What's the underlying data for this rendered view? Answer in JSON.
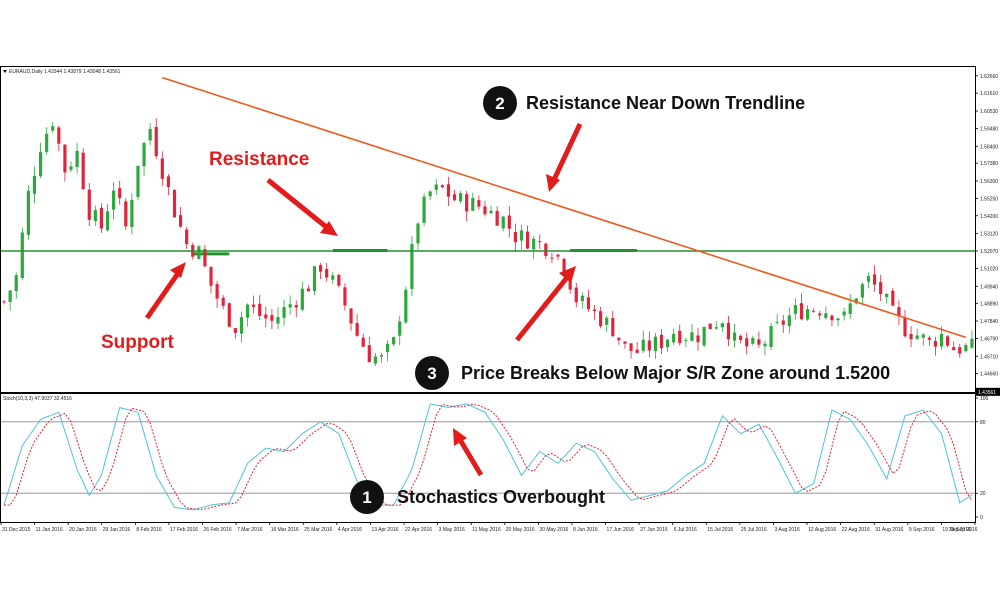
{
  "chart_data": {
    "type": "candlestick",
    "symbol_header": "EURAUD,Daily  1.43344 1.43879 1.43048 1.43561",
    "stoch_header": "Stoch(10,3,3) 47.9037 32.4516",
    "price_axis": {
      "ticks": [
        "1.62660",
        "1.61610",
        "1.60530",
        "1.59480",
        "1.58400",
        "1.57380",
        "1.56300",
        "1.55250",
        "1.54200",
        "1.53120",
        "1.52070",
        "1.51020",
        "1.49940",
        "1.48890",
        "1.47840",
        "1.46790",
        "1.45710",
        "1.44660"
      ],
      "last_price_label": "1.43561",
      "ylim": [
        1.4355,
        1.6319
      ]
    },
    "stoch_axis": {
      "ticks": [
        "100",
        "80",
        "20",
        "0"
      ],
      "ylim": [
        0,
        100
      ]
    },
    "x_axis_labels": [
      "31 Dec 2015",
      "11 Jan 2016",
      "20 Jan 2016",
      "29 Jan 2016",
      "8 Feb 2016",
      "17 Feb 2016",
      "26 Feb 2016",
      "7 Mar 2016",
      "16 Mar 2016",
      "25 Mar 2016",
      "4 Apr 2016",
      "13 Apr 2016",
      "22 Apr 2016",
      "3 May 2016",
      "11 May 2016",
      "20 May 2016",
      "30 May 2016",
      "8 Jun 2016",
      "17 Jun 2016",
      "27 Jun 2016",
      "6 Jul 2016",
      "15 Jul 2016",
      "25 Jul 2016",
      "3 Aug 2016",
      "12 Aug 2016",
      "22 Aug 2016",
      "31 Aug 2016",
      "9 Sep 2016",
      "19 Sep 2016",
      "28 Sep 2016"
    ],
    "close_path": [
      [
        0,
        1.49
      ],
      [
        2,
        1.505
      ],
      [
        4,
        1.555
      ],
      [
        6,
        1.585
      ],
      [
        8,
        1.6
      ],
      [
        10,
        1.57
      ],
      [
        12,
        1.58
      ],
      [
        14,
        1.545
      ],
      [
        16,
        1.535
      ],
      [
        18,
        1.56
      ],
      [
        20,
        1.535
      ],
      [
        22,
        1.575
      ],
      [
        24,
        1.595
      ],
      [
        26,
        1.57
      ],
      [
        28,
        1.545
      ],
      [
        30,
        1.525
      ],
      [
        32,
        1.52
      ],
      [
        34,
        1.5
      ],
      [
        36,
        1.485
      ],
      [
        38,
        1.475
      ],
      [
        40,
        1.488
      ],
      [
        42,
        1.482
      ],
      [
        44,
        1.478
      ],
      [
        46,
        1.485
      ],
      [
        48,
        1.492
      ],
      [
        50,
        1.5
      ],
      [
        52,
        1.512
      ],
      [
        54,
        1.502
      ],
      [
        56,
        1.488
      ],
      [
        58,
        1.47
      ],
      [
        60,
        1.458
      ],
      [
        62,
        1.455
      ],
      [
        64,
        1.465
      ],
      [
        66,
        1.5
      ],
      [
        68,
        1.54
      ],
      [
        70,
        1.556
      ],
      [
        72,
        1.558
      ],
      [
        74,
        1.552
      ],
      [
        76,
        1.55
      ],
      [
        78,
        1.548
      ],
      [
        80,
        1.544
      ],
      [
        82,
        1.54
      ],
      [
        84,
        1.53
      ],
      [
        86,
        1.528
      ],
      [
        88,
        1.525
      ],
      [
        90,
        1.522
      ],
      [
        92,
        1.512
      ],
      [
        94,
        1.492
      ],
      [
        96,
        1.486
      ],
      [
        98,
        1.48
      ],
      [
        100,
        1.474
      ],
      [
        102,
        1.462
      ],
      [
        104,
        1.46
      ],
      [
        106,
        1.463
      ],
      [
        108,
        1.466
      ],
      [
        110,
        1.472
      ],
      [
        112,
        1.47
      ],
      [
        114,
        1.47
      ],
      [
        116,
        1.476
      ],
      [
        118,
        1.48
      ],
      [
        120,
        1.466
      ],
      [
        122,
        1.463
      ],
      [
        124,
        1.462
      ],
      [
        126,
        1.47
      ],
      [
        128,
        1.478
      ],
      [
        130,
        1.484
      ],
      [
        132,
        1.486
      ],
      [
        134,
        1.486
      ],
      [
        136,
        1.484
      ],
      [
        138,
        1.48
      ],
      [
        140,
        1.495
      ],
      [
        142,
        1.503
      ],
      [
        144,
        1.496
      ],
      [
        146,
        1.482
      ],
      [
        148,
        1.474
      ],
      [
        150,
        1.47
      ],
      [
        152,
        1.465
      ],
      [
        154,
        1.47
      ],
      [
        156,
        1.462
      ]
    ],
    "overlays": {
      "sr_level": 1.5207,
      "trendline": {
        "from": [
          26,
          1.6255
        ],
        "to": [
          158,
          1.4685
        ]
      },
      "zones": [
        {
          "from": 31,
          "to": 37,
          "level": 1.519
        },
        {
          "from": 54,
          "to": 63,
          "level": 1.521
        },
        {
          "from": 93,
          "to": 104,
          "level": 1.521
        }
      ],
      "stoch_levels": [
        80,
        20
      ]
    },
    "stoch_path": [
      [
        0,
        10
      ],
      [
        3,
        60
      ],
      [
        6,
        82
      ],
      [
        9,
        88
      ],
      [
        12,
        40
      ],
      [
        14,
        18
      ],
      [
        16,
        35
      ],
      [
        19,
        92
      ],
      [
        22,
        88
      ],
      [
        25,
        35
      ],
      [
        28,
        8
      ],
      [
        31,
        6
      ],
      [
        34,
        10
      ],
      [
        37,
        12
      ],
      [
        40,
        45
      ],
      [
        43,
        58
      ],
      [
        46,
        55
      ],
      [
        49,
        70
      ],
      [
        52,
        80
      ],
      [
        55,
        70
      ],
      [
        58,
        30
      ],
      [
        61,
        10
      ],
      [
        64,
        10
      ],
      [
        67,
        40
      ],
      [
        70,
        95
      ],
      [
        73,
        92
      ],
      [
        76,
        95
      ],
      [
        79,
        88
      ],
      [
        82,
        65
      ],
      [
        85,
        35
      ],
      [
        88,
        55
      ],
      [
        91,
        45
      ],
      [
        94,
        62
      ],
      [
        97,
        55
      ],
      [
        100,
        32
      ],
      [
        103,
        14
      ],
      [
        106,
        18
      ],
      [
        109,
        22
      ],
      [
        112,
        35
      ],
      [
        115,
        45
      ],
      [
        118,
        85
      ],
      [
        121,
        70
      ],
      [
        124,
        78
      ],
      [
        127,
        50
      ],
      [
        130,
        20
      ],
      [
        133,
        28
      ],
      [
        136,
        90
      ],
      [
        139,
        82
      ],
      [
        142,
        60
      ],
      [
        145,
        32
      ],
      [
        148,
        85
      ],
      [
        151,
        90
      ],
      [
        154,
        70
      ],
      [
        157,
        12
      ],
      [
        160,
        22
      ]
    ]
  },
  "annotations": {
    "support": "Support",
    "resistance": "Resistance",
    "item1_num": "1",
    "item1_text": "Stochastics Overbought",
    "item2_num": "2",
    "item2_text": "Resistance Near Down Trendline",
    "item3_num": "3",
    "item3_text": "Price Breaks Below Major S/R Zone around 1.5200"
  },
  "colors": {
    "background": "#ffffff",
    "grid": "#c8c8c8",
    "bull": "#2ca83c",
    "bear": "#e0243c",
    "sr_line": "#23912e",
    "trendline": "#ee5a1c",
    "annotation_red": "#e21b1b",
    "stoch_main": "#4fc3dc",
    "stoch_signal": "#e0243c"
  }
}
